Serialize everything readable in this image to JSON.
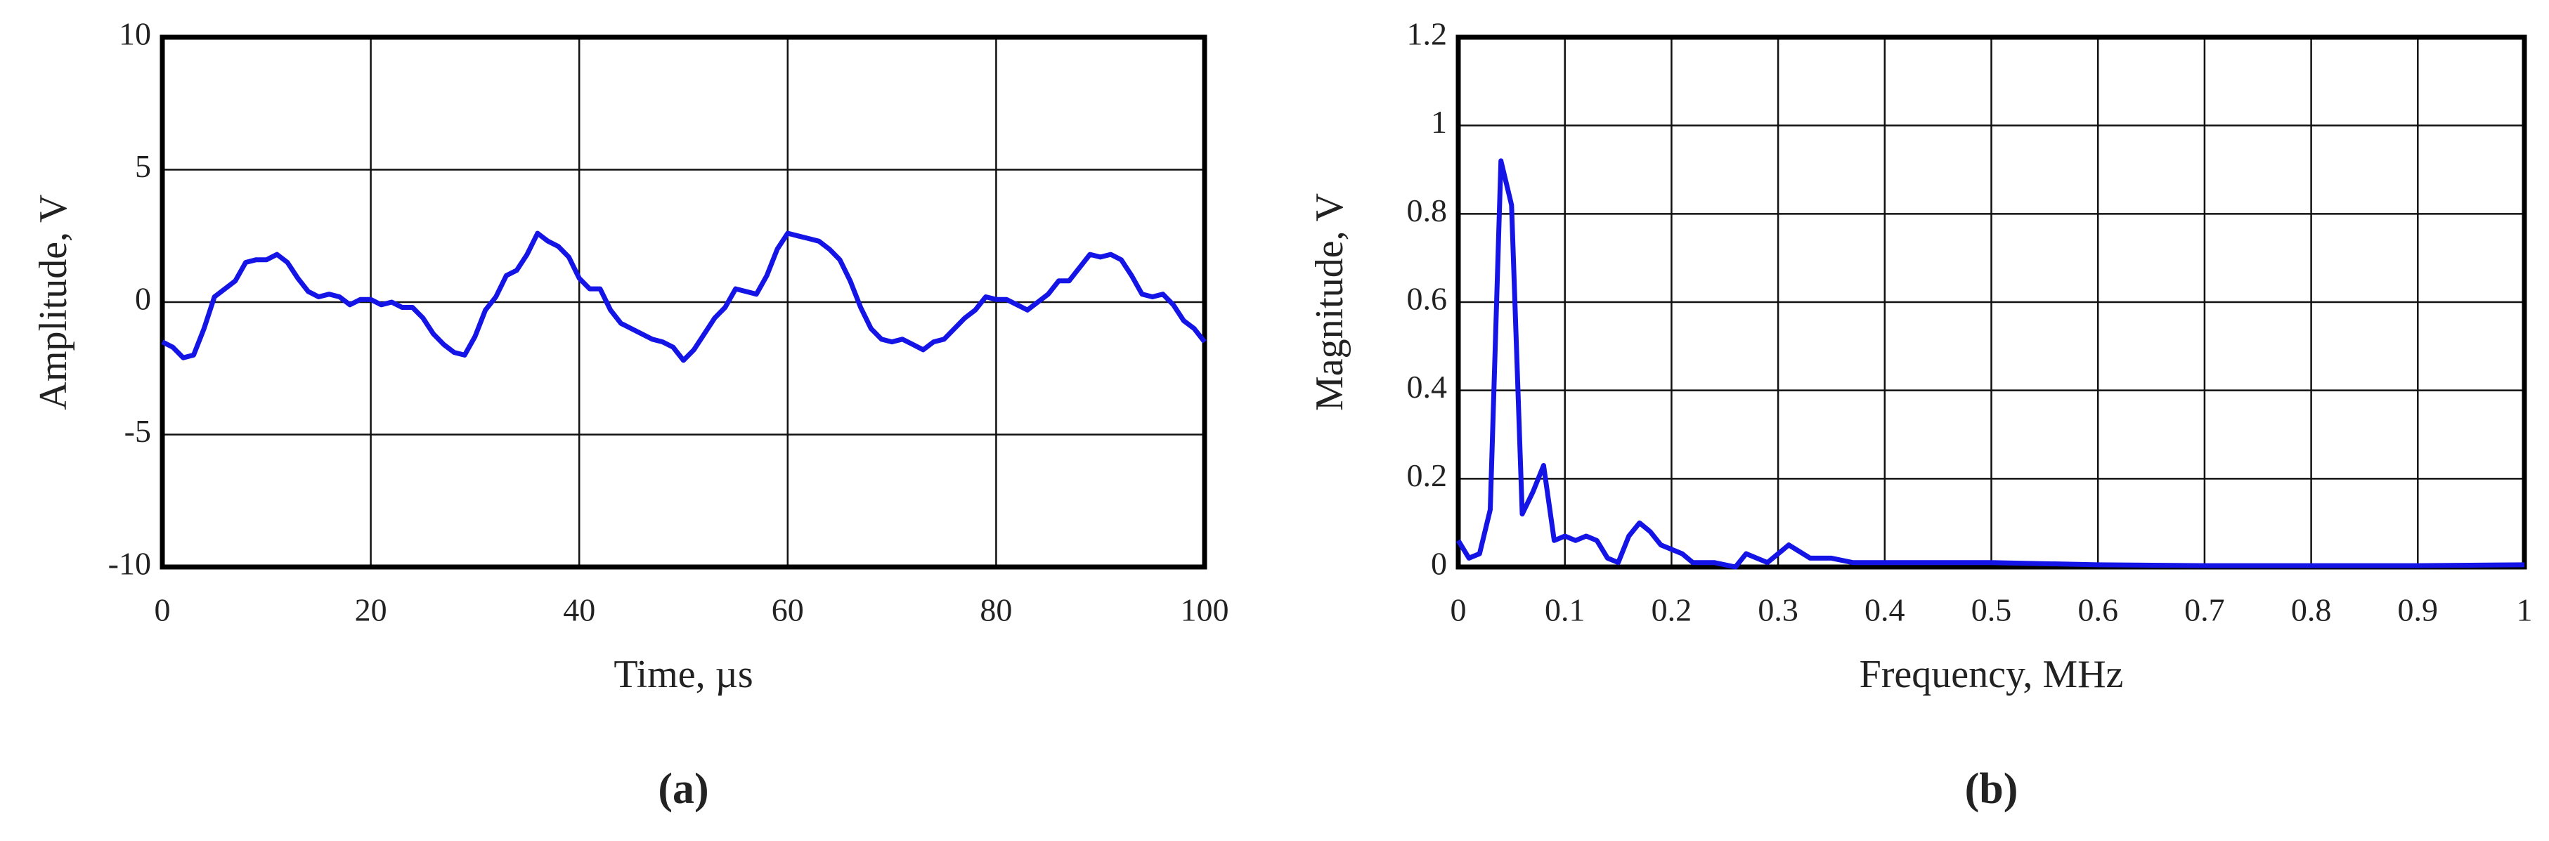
{
  "chart_data": [
    {
      "type": "line",
      "xlabel": "Time, µs",
      "ylabel": "Amplitude, V",
      "caption": "(a)",
      "color": "#1414e6",
      "grid": true,
      "xlim": [
        0,
        100
      ],
      "xticks": [
        0,
        20,
        40,
        60,
        80,
        100
      ],
      "ylim": [
        -10,
        10
      ],
      "yticks": [
        -10,
        -5,
        0,
        5,
        10
      ],
      "x": [
        0,
        1,
        2,
        3,
        4,
        5,
        6,
        7,
        8,
        9,
        10,
        11,
        12,
        13,
        14,
        15,
        16,
        17,
        18,
        19,
        20,
        21,
        22,
        23,
        24,
        25,
        26,
        27,
        28,
        29,
        30,
        31,
        32,
        33,
        34,
        35,
        36,
        37,
        38,
        39,
        40,
        41,
        42,
        43,
        44,
        45,
        46,
        47,
        48,
        49,
        50,
        51,
        52,
        53,
        54,
        55,
        56,
        57,
        58,
        59,
        60,
        61,
        62,
        63,
        64,
        65,
        66,
        67,
        68,
        69,
        70,
        71,
        72,
        73,
        74,
        75,
        76,
        77,
        78,
        79,
        80,
        81,
        82,
        83,
        84,
        85,
        86,
        87,
        88,
        89,
        90,
        91,
        92,
        93,
        94,
        95,
        96,
        97,
        98,
        99,
        100
      ],
      "values": [
        -1.5,
        -1.7,
        -2.1,
        -2.0,
        -1.0,
        0.2,
        0.5,
        0.8,
        1.5,
        1.6,
        1.6,
        1.8,
        1.5,
        0.9,
        0.4,
        0.2,
        0.3,
        0.2,
        -0.1,
        0.1,
        0.1,
        -0.1,
        0.0,
        -0.2,
        -0.2,
        -0.6,
        -1.2,
        -1.6,
        -1.9,
        -2.0,
        -1.3,
        -0.3,
        0.2,
        1.0,
        1.2,
        1.8,
        2.6,
        2.3,
        2.1,
        1.7,
        0.9,
        0.5,
        0.5,
        -0.3,
        -0.8,
        -1.0,
        -1.2,
        -1.4,
        -1.5,
        -1.7,
        -2.2,
        -1.8,
        -1.2,
        -0.6,
        -0.2,
        0.5,
        0.4,
        0.3,
        1.0,
        2.0,
        2.6,
        2.5,
        2.4,
        2.3,
        2.0,
        1.6,
        0.8,
        -0.2,
        -1.0,
        -1.4,
        -1.5,
        -1.4,
        -1.6,
        -1.8,
        -1.5,
        -1.4,
        -1.0,
        -0.6,
        -0.3,
        0.2,
        0.1,
        0.1,
        -0.1,
        -0.3,
        0.0,
        0.3,
        0.8,
        0.8,
        1.3,
        1.8,
        1.7,
        1.8,
        1.6,
        1.0,
        0.3,
        0.2,
        0.3,
        -0.1,
        -0.7,
        -1.0,
        -1.5
      ]
    },
    {
      "type": "line",
      "xlabel": "Frequency, MHz",
      "ylabel": "Magnitude, V",
      "caption": "(b)",
      "color": "#1414e6",
      "grid": true,
      "xlim": [
        0,
        1
      ],
      "xticks": [
        0,
        0.1,
        0.2,
        0.3,
        0.4,
        0.5,
        0.6,
        0.7,
        0.8,
        0.9,
        1
      ],
      "ylim": [
        0,
        1.2
      ],
      "yticks": [
        0,
        0.2,
        0.4,
        0.6,
        0.8,
        1,
        1.2
      ],
      "x": [
        0,
        0.01,
        0.02,
        0.03,
        0.04,
        0.05,
        0.06,
        0.07,
        0.08,
        0.09,
        0.1,
        0.11,
        0.12,
        0.13,
        0.14,
        0.15,
        0.16,
        0.17,
        0.18,
        0.19,
        0.2,
        0.21,
        0.22,
        0.24,
        0.26,
        0.27,
        0.29,
        0.31,
        0.33,
        0.35,
        0.37,
        0.4,
        0.44,
        0.5,
        0.6,
        0.7,
        0.8,
        0.9,
        1.0
      ],
      "values": [
        0.06,
        0.02,
        0.03,
        0.13,
        0.92,
        0.82,
        0.12,
        0.17,
        0.23,
        0.06,
        0.07,
        0.06,
        0.07,
        0.06,
        0.02,
        0.01,
        0.07,
        0.1,
        0.08,
        0.05,
        0.04,
        0.03,
        0.01,
        0.01,
        0.0,
        0.03,
        0.01,
        0.05,
        0.02,
        0.02,
        0.01,
        0.01,
        0.01,
        0.01,
        0.005,
        0.003,
        0.003,
        0.003,
        0.005
      ]
    }
  ]
}
